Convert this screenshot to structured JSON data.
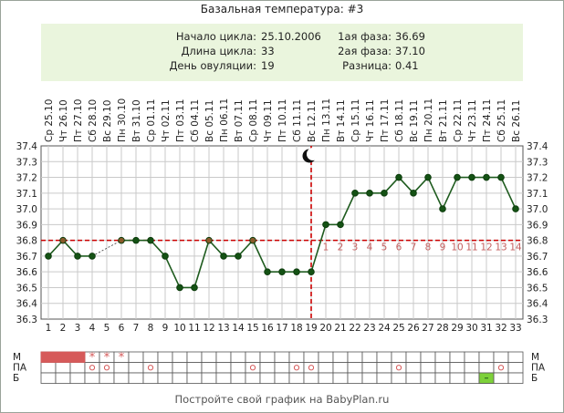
{
  "title": "Базальная температура: #3",
  "info": {
    "cycle_start_label": "Начало цикла:",
    "cycle_start": "25.10.2006",
    "cycle_length_label": "Длина цикла:",
    "cycle_length": "33",
    "ovulation_day_label": "День овуляции:",
    "ovulation_day": "19",
    "phase1_label": "1ая фаза:",
    "phase1": "36.69",
    "phase2_label": "2ая фаза:",
    "phase2": "37.10",
    "diff_label": "Разница:",
    "diff": "0.41"
  },
  "footer": "Постройте свой график на BabyPlan.ru",
  "colors": {
    "line": "#1e5b1e",
    "marker": "#145214",
    "coverline": "#cc0000",
    "phase2_numbers": "#c46060",
    "menses": "#d65a5a",
    "dry_cell": "#7dd13a",
    "grid": "#c9c9c9",
    "info_bg": "#eaf5dd"
  },
  "chart_data": {
    "type": "line",
    "dates": [
      "Ср 25.10",
      "Чт 26.10",
      "Пт 27.10",
      "Сб 28.10",
      "Вс 29.10",
      "Пн 30.10",
      "Вт 31.10",
      "Ср 01.11",
      "Чт 02.11",
      "Пт 03.11",
      "Сб 04.11",
      "Вс 05.11",
      "Пн 06.11",
      "Вт 07.11",
      "Ср 08.11",
      "Чт 09.11",
      "Пт 10.11",
      "Сб 11.11",
      "Вс 12.11",
      "Пн 13.11",
      "Вт 14.11",
      "Ср 15.11",
      "Чт 16.11",
      "Пт 17.11",
      "Сб 18.11",
      "Вс 19.11",
      "Пн 20.11",
      "Вт 21.11",
      "Ср 22.11",
      "Чт 23.11",
      "Пт 24.11",
      "Сб 25.11",
      "Вс 26.11"
    ],
    "days": [
      1,
      2,
      3,
      4,
      5,
      6,
      7,
      8,
      9,
      10,
      11,
      12,
      13,
      14,
      15,
      16,
      17,
      18,
      19,
      20,
      21,
      22,
      23,
      24,
      25,
      26,
      27,
      28,
      29,
      30,
      31,
      32,
      33
    ],
    "temperatures": [
      36.7,
      36.8,
      36.7,
      36.7,
      null,
      36.8,
      36.8,
      36.8,
      36.7,
      36.5,
      36.5,
      36.8,
      36.7,
      36.7,
      36.8,
      36.6,
      36.6,
      36.6,
      36.6,
      36.9,
      36.9,
      37.1,
      37.1,
      37.1,
      37.2,
      37.1,
      37.2,
      37.0,
      37.2,
      37.2,
      37.2,
      37.2,
      37.0
    ],
    "gap_dashed": [
      4,
      6
    ],
    "yticks": [
      "37.4",
      "37.3",
      "37.2",
      "37.1",
      "37.0",
      "36.9",
      "36.8",
      "36.7",
      "36.6",
      "36.5",
      "36.4",
      "36.3"
    ],
    "ylim": [
      36.3,
      37.4
    ],
    "coverline": 36.8,
    "ovulation_day": 19,
    "ovulation_icon": "crescent-moon-icon",
    "phase2_days": [
      "1",
      "2",
      "3",
      "4",
      "5",
      "6",
      "7",
      "8",
      "9",
      "10",
      "11",
      "12",
      "13",
      "14"
    ],
    "marker_fills": {
      "2": "#8a5a2a",
      "6": "#8a5a2a",
      "12": "#8a5a2a",
      "15": "#8a5a2a"
    },
    "grid": true
  },
  "symptom_rows": {
    "labels_left": [
      "М",
      "ПА",
      "Б"
    ],
    "labels_right": [
      "М",
      "ПА",
      "Б"
    ],
    "menses_days": [
      1,
      2,
      3
    ],
    "spotting_days": [
      4,
      5,
      6
    ],
    "pa_days": [
      4,
      5,
      8,
      15,
      18,
      19,
      25,
      32
    ],
    "dry_days": [
      31
    ]
  }
}
